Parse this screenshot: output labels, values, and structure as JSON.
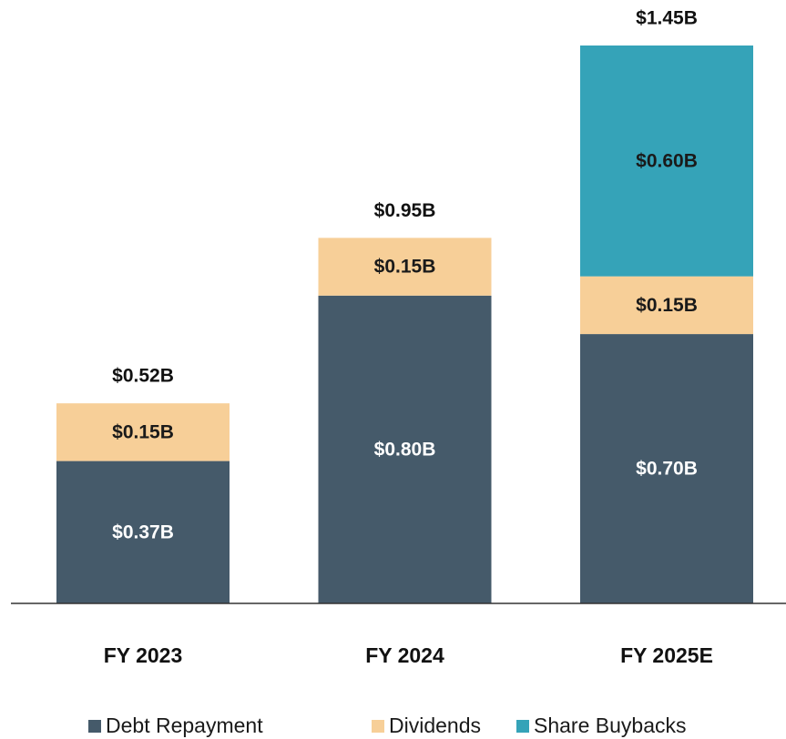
{
  "chart_data": {
    "type": "stacked_bar",
    "categories": [
      "FY 2023",
      "FY 2024",
      "FY 2025E"
    ],
    "series": [
      {
        "name": "Debt Repayment",
        "color": "#455a6a",
        "values": [
          0.37,
          0.8,
          0.7
        ],
        "value_labels": [
          "$0.37B",
          "$0.80B",
          "$0.70B"
        ]
      },
      {
        "name": "Dividends",
        "color": "#f7cf98",
        "values": [
          0.15,
          0.15,
          0.15
        ],
        "value_labels": [
          "$0.15B",
          "$0.15B",
          "$0.15B"
        ]
      },
      {
        "name": "Share Buybacks",
        "color": "#35a3b8",
        "values": [
          null,
          null,
          0.6
        ],
        "value_labels": [
          null,
          null,
          "$0.60B"
        ]
      }
    ],
    "totals": {
      "values": [
        0.52,
        0.95,
        1.45
      ],
      "value_labels": [
        "$0.52B",
        "$0.95B",
        "$1.45B"
      ]
    }
  }
}
